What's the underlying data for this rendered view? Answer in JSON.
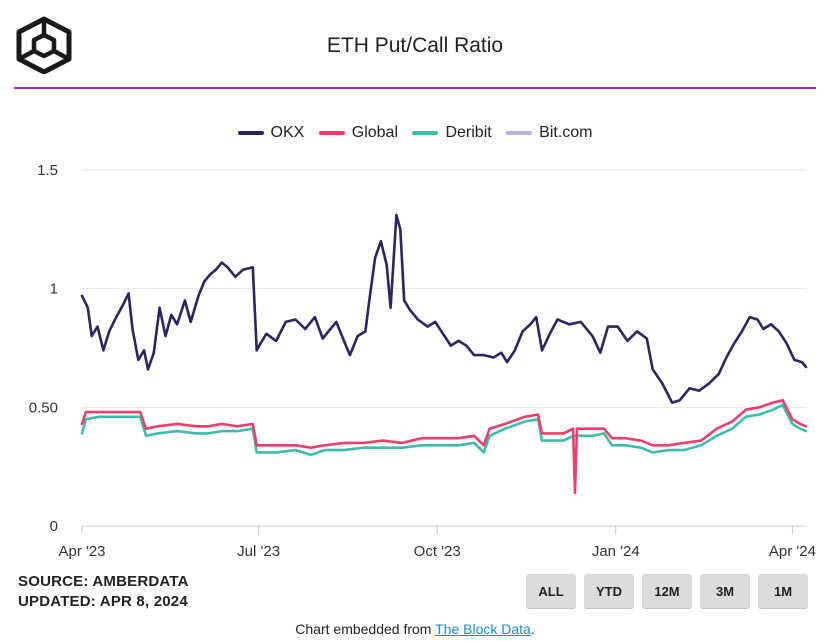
{
  "header": {
    "title": "ETH Put/Call Ratio",
    "logo_icon": "cube-logo-icon"
  },
  "legend": [
    {
      "label": "OKX",
      "color": "#2b2560"
    },
    {
      "label": "Global",
      "color": "#ee3f6a"
    },
    {
      "label": "Deribit",
      "color": "#3dbcaa"
    },
    {
      "label": "Bit.com",
      "color": "#b9b3e0"
    }
  ],
  "footer": {
    "source": "SOURCE: AMBERDATA",
    "updated": "UPDATED: APR 8, 2024",
    "ranges": [
      "ALL",
      "YTD",
      "12M",
      "3M",
      "1M"
    ],
    "embed_prefix": "Chart embedded from ",
    "embed_link": "The Block Data",
    "embed_suffix": "."
  },
  "chart_data": {
    "type": "line",
    "x_start": "2023-04-01",
    "x_end": "2024-04-08",
    "x_ticks": [
      {
        "date": "2023-04-01",
        "label": "Apr '23"
      },
      {
        "date": "2023-07-01",
        "label": "Jul '23"
      },
      {
        "date": "2023-10-01",
        "label": "Oct '23"
      },
      {
        "date": "2024-01-01",
        "label": "Jan '24"
      },
      {
        "date": "2024-04-01",
        "label": "Apr '24"
      }
    ],
    "ylim": [
      0,
      1.5
    ],
    "y_ticks": [
      {
        "value": 0,
        "label": "0"
      },
      {
        "value": 0.5,
        "label": "0.50"
      },
      {
        "value": 1,
        "label": "1"
      },
      {
        "value": 1.5,
        "label": "1.5"
      }
    ],
    "grid": true,
    "legend_position": "top",
    "series": [
      {
        "name": "OKX",
        "color": "#2b2560",
        "points": [
          [
            "2023-04-01",
            0.97
          ],
          [
            "2023-04-04",
            0.92
          ],
          [
            "2023-04-06",
            0.8
          ],
          [
            "2023-04-09",
            0.84
          ],
          [
            "2023-04-12",
            0.74
          ],
          [
            "2023-04-15",
            0.82
          ],
          [
            "2023-04-18",
            0.87
          ],
          [
            "2023-04-22",
            0.93
          ],
          [
            "2023-04-25",
            0.98
          ],
          [
            "2023-04-27",
            0.83
          ],
          [
            "2023-04-30",
            0.7
          ],
          [
            "2023-05-03",
            0.74
          ],
          [
            "2023-05-05",
            0.66
          ],
          [
            "2023-05-08",
            0.73
          ],
          [
            "2023-05-11",
            0.92
          ],
          [
            "2023-05-14",
            0.8
          ],
          [
            "2023-05-17",
            0.89
          ],
          [
            "2023-05-20",
            0.85
          ],
          [
            "2023-05-24",
            0.95
          ],
          [
            "2023-05-27",
            0.86
          ],
          [
            "2023-05-31",
            0.97
          ],
          [
            "2023-06-03",
            1.03
          ],
          [
            "2023-06-06",
            1.06
          ],
          [
            "2023-06-09",
            1.08
          ],
          [
            "2023-06-12",
            1.11
          ],
          [
            "2023-06-15",
            1.09
          ],
          [
            "2023-06-19",
            1.05
          ],
          [
            "2023-06-23",
            1.08
          ],
          [
            "2023-06-28",
            1.09
          ],
          [
            "2023-06-30",
            0.74
          ],
          [
            "2023-07-02",
            0.77
          ],
          [
            "2023-07-05",
            0.81
          ],
          [
            "2023-07-10",
            0.78
          ],
          [
            "2023-07-15",
            0.86
          ],
          [
            "2023-07-20",
            0.87
          ],
          [
            "2023-07-25",
            0.83
          ],
          [
            "2023-07-30",
            0.88
          ],
          [
            "2023-08-03",
            0.79
          ],
          [
            "2023-08-07",
            0.83
          ],
          [
            "2023-08-10",
            0.86
          ],
          [
            "2023-08-14",
            0.78
          ],
          [
            "2023-08-17",
            0.72
          ],
          [
            "2023-08-21",
            0.8
          ],
          [
            "2023-08-25",
            0.82
          ],
          [
            "2023-08-27",
            0.95
          ],
          [
            "2023-08-30",
            1.13
          ],
          [
            "2023-09-02",
            1.2
          ],
          [
            "2023-09-05",
            1.1
          ],
          [
            "2023-09-07",
            0.92
          ],
          [
            "2023-09-10",
            1.31
          ],
          [
            "2023-09-12",
            1.25
          ],
          [
            "2023-09-14",
            0.95
          ],
          [
            "2023-09-17",
            0.91
          ],
          [
            "2023-09-21",
            0.87
          ],
          [
            "2023-09-26",
            0.84
          ],
          [
            "2023-09-30",
            0.86
          ],
          [
            "2023-10-04",
            0.81
          ],
          [
            "2023-10-08",
            0.76
          ],
          [
            "2023-10-12",
            0.78
          ],
          [
            "2023-10-16",
            0.76
          ],
          [
            "2023-10-20",
            0.72
          ],
          [
            "2023-10-25",
            0.72
          ],
          [
            "2023-10-30",
            0.71
          ],
          [
            "2023-11-03",
            0.73
          ],
          [
            "2023-11-06",
            0.69
          ],
          [
            "2023-11-10",
            0.74
          ],
          [
            "2023-11-14",
            0.82
          ],
          [
            "2023-11-18",
            0.85
          ],
          [
            "2023-11-21",
            0.88
          ],
          [
            "2023-11-24",
            0.74
          ],
          [
            "2023-11-28",
            0.81
          ],
          [
            "2023-12-02",
            0.87
          ],
          [
            "2023-12-08",
            0.85
          ],
          [
            "2023-12-14",
            0.86
          ],
          [
            "2023-12-20",
            0.8
          ],
          [
            "2023-12-24",
            0.73
          ],
          [
            "2023-12-28",
            0.84
          ],
          [
            "2024-01-02",
            0.84
          ],
          [
            "2024-01-07",
            0.78
          ],
          [
            "2024-01-12",
            0.82
          ],
          [
            "2024-01-17",
            0.79
          ],
          [
            "2024-01-20",
            0.66
          ],
          [
            "2024-01-25",
            0.6
          ],
          [
            "2024-01-30",
            0.52
          ],
          [
            "2024-02-03",
            0.53
          ],
          [
            "2024-02-08",
            0.58
          ],
          [
            "2024-02-13",
            0.57
          ],
          [
            "2024-02-18",
            0.6
          ],
          [
            "2024-02-23",
            0.64
          ],
          [
            "2024-02-27",
            0.71
          ],
          [
            "2024-03-02",
            0.77
          ],
          [
            "2024-03-06",
            0.82
          ],
          [
            "2024-03-10",
            0.88
          ],
          [
            "2024-03-14",
            0.87
          ],
          [
            "2024-03-17",
            0.83
          ],
          [
            "2024-03-21",
            0.85
          ],
          [
            "2024-03-25",
            0.82
          ],
          [
            "2024-03-29",
            0.77
          ],
          [
            "2024-04-02",
            0.7
          ],
          [
            "2024-04-06",
            0.69
          ],
          [
            "2024-04-08",
            0.67
          ]
        ]
      },
      {
        "name": "Global",
        "color": "#ee3f6a",
        "points": [
          [
            "2023-04-01",
            0.43
          ],
          [
            "2023-04-03",
            0.48
          ],
          [
            "2023-04-10",
            0.48
          ],
          [
            "2023-04-20",
            0.48
          ],
          [
            "2023-04-26",
            0.48
          ],
          [
            "2023-05-01",
            0.48
          ],
          [
            "2023-05-04",
            0.41
          ],
          [
            "2023-05-10",
            0.42
          ],
          [
            "2023-05-20",
            0.43
          ],
          [
            "2023-05-30",
            0.42
          ],
          [
            "2023-06-05",
            0.42
          ],
          [
            "2023-06-12",
            0.43
          ],
          [
            "2023-06-20",
            0.42
          ],
          [
            "2023-06-28",
            0.43
          ],
          [
            "2023-06-30",
            0.34
          ],
          [
            "2023-07-10",
            0.34
          ],
          [
            "2023-07-20",
            0.34
          ],
          [
            "2023-07-28",
            0.33
          ],
          [
            "2023-08-04",
            0.34
          ],
          [
            "2023-08-14",
            0.35
          ],
          [
            "2023-08-24",
            0.35
          ],
          [
            "2023-09-03",
            0.36
          ],
          [
            "2023-09-13",
            0.35
          ],
          [
            "2023-09-23",
            0.37
          ],
          [
            "2023-10-03",
            0.37
          ],
          [
            "2023-10-12",
            0.37
          ],
          [
            "2023-10-20",
            0.38
          ],
          [
            "2023-10-25",
            0.34
          ],
          [
            "2023-10-28",
            0.41
          ],
          [
            "2023-11-05",
            0.43
          ],
          [
            "2023-11-15",
            0.46
          ],
          [
            "2023-11-22",
            0.47
          ],
          [
            "2023-11-24",
            0.39
          ],
          [
            "2023-12-05",
            0.39
          ],
          [
            "2023-12-10",
            0.41
          ],
          [
            "2023-12-11",
            0.14
          ],
          [
            "2023-12-12",
            0.41
          ],
          [
            "2023-12-20",
            0.41
          ],
          [
            "2023-12-26",
            0.41
          ],
          [
            "2023-12-30",
            0.37
          ],
          [
            "2024-01-06",
            0.37
          ],
          [
            "2024-01-14",
            0.36
          ],
          [
            "2024-01-20",
            0.34
          ],
          [
            "2024-01-28",
            0.34
          ],
          [
            "2024-02-05",
            0.35
          ],
          [
            "2024-02-14",
            0.36
          ],
          [
            "2024-02-22",
            0.41
          ],
          [
            "2024-03-01",
            0.44
          ],
          [
            "2024-03-08",
            0.49
          ],
          [
            "2024-03-15",
            0.5
          ],
          [
            "2024-03-22",
            0.52
          ],
          [
            "2024-03-27",
            0.53
          ],
          [
            "2024-04-01",
            0.45
          ],
          [
            "2024-04-05",
            0.43
          ],
          [
            "2024-04-08",
            0.42
          ]
        ]
      },
      {
        "name": "Deribit",
        "color": "#3dbcaa",
        "points": [
          [
            "2023-04-01",
            0.39
          ],
          [
            "2023-04-03",
            0.45
          ],
          [
            "2023-04-10",
            0.46
          ],
          [
            "2023-04-20",
            0.46
          ],
          [
            "2023-04-26",
            0.46
          ],
          [
            "2023-05-01",
            0.46
          ],
          [
            "2023-05-04",
            0.38
          ],
          [
            "2023-05-10",
            0.39
          ],
          [
            "2023-05-20",
            0.4
          ],
          [
            "2023-05-30",
            0.39
          ],
          [
            "2023-06-05",
            0.39
          ],
          [
            "2023-06-12",
            0.4
          ],
          [
            "2023-06-20",
            0.4
          ],
          [
            "2023-06-28",
            0.41
          ],
          [
            "2023-06-30",
            0.31
          ],
          [
            "2023-07-10",
            0.31
          ],
          [
            "2023-07-20",
            0.32
          ],
          [
            "2023-07-28",
            0.3
          ],
          [
            "2023-08-04",
            0.32
          ],
          [
            "2023-08-14",
            0.32
          ],
          [
            "2023-08-24",
            0.33
          ],
          [
            "2023-09-03",
            0.33
          ],
          [
            "2023-09-13",
            0.33
          ],
          [
            "2023-09-23",
            0.34
          ],
          [
            "2023-10-03",
            0.34
          ],
          [
            "2023-10-12",
            0.34
          ],
          [
            "2023-10-20",
            0.35
          ],
          [
            "2023-10-25",
            0.31
          ],
          [
            "2023-10-28",
            0.38
          ],
          [
            "2023-11-05",
            0.41
          ],
          [
            "2023-11-15",
            0.44
          ],
          [
            "2023-11-22",
            0.45
          ],
          [
            "2023-11-24",
            0.36
          ],
          [
            "2023-12-05",
            0.36
          ],
          [
            "2023-12-10",
            0.38
          ],
          [
            "2023-12-12",
            0.38
          ],
          [
            "2023-12-20",
            0.38
          ],
          [
            "2023-12-26",
            0.39
          ],
          [
            "2023-12-30",
            0.34
          ],
          [
            "2024-01-06",
            0.34
          ],
          [
            "2024-01-14",
            0.33
          ],
          [
            "2024-01-20",
            0.31
          ],
          [
            "2024-01-28",
            0.32
          ],
          [
            "2024-02-05",
            0.32
          ],
          [
            "2024-02-14",
            0.34
          ],
          [
            "2024-02-22",
            0.38
          ],
          [
            "2024-03-01",
            0.41
          ],
          [
            "2024-03-08",
            0.46
          ],
          [
            "2024-03-15",
            0.47
          ],
          [
            "2024-03-22",
            0.49
          ],
          [
            "2024-03-27",
            0.51
          ],
          [
            "2024-04-01",
            0.43
          ],
          [
            "2024-04-05",
            0.41
          ],
          [
            "2024-04-08",
            0.4
          ]
        ]
      },
      {
        "name": "Bit.com",
        "color": "#b9b3e0",
        "points": []
      }
    ]
  }
}
